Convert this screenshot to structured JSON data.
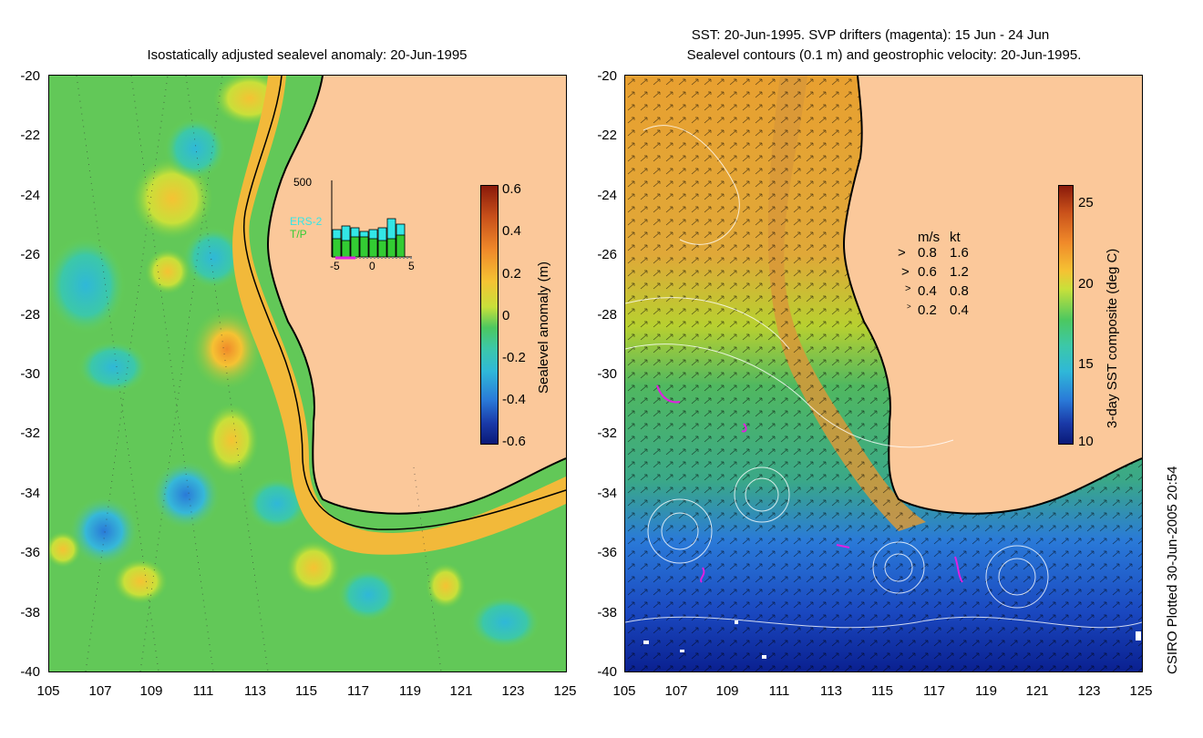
{
  "left_panel": {
    "title": "Isostatically adjusted sealevel anomaly: 20-Jun-1995",
    "y_ticks": [
      "-20",
      "-22",
      "-24",
      "-26",
      "-28",
      "-30",
      "-32",
      "-34",
      "-36",
      "-38",
      "-40"
    ],
    "x_ticks": [
      "105",
      "107",
      "109",
      "111",
      "113",
      "115",
      "117",
      "119",
      "121",
      "123",
      "125"
    ],
    "colorbar": {
      "label": "Sealevel anomaly (m)",
      "ticks": [
        "0.6",
        "0.4",
        "0.2",
        "0",
        "-0.2",
        "-0.4",
        "-0.6"
      ]
    },
    "inset": {
      "ymax_label": "500",
      "series_labels": [
        "ERS-2",
        "T/P"
      ],
      "x_ticks": [
        "-5",
        "0",
        "5"
      ],
      "colors": {
        "ers2": "#33e6e6",
        "tp": "#33cc33"
      }
    }
  },
  "right_panel": {
    "title_line1": "SST: 20-Jun-1995. SVP drifters (magenta): 15 Jun - 24 Jun",
    "title_line2": "Sealevel contours (0.1 m) and geostrophic velocity: 20-Jun-1995.",
    "y_ticks": [
      "-20",
      "-22",
      "-24",
      "-26",
      "-28",
      "-30",
      "-32",
      "-34",
      "-36",
      "-38",
      "-40"
    ],
    "x_ticks": [
      "105",
      "107",
      "109",
      "111",
      "113",
      "115",
      "117",
      "119",
      "121",
      "123",
      "125"
    ],
    "colorbar": {
      "label": "3-day SST composite (deg C)",
      "ticks": [
        "25",
        "20",
        "15",
        "10"
      ]
    },
    "velocity_legend": {
      "header_ms": "m/s",
      "header_kt": "kt",
      "rows": [
        {
          "ms": "0.8",
          "kt": "1.6"
        },
        {
          "ms": "0.6",
          "kt": "1.2"
        },
        {
          "ms": "0.4",
          "kt": "0.8"
        },
        {
          "ms": "0.2",
          "kt": "0.4"
        }
      ]
    }
  },
  "credit": "CSIRO Plotted 30-Jun-2005 20:54",
  "colors": {
    "land": "#fbc89a",
    "drifter": "#e020e0"
  }
}
